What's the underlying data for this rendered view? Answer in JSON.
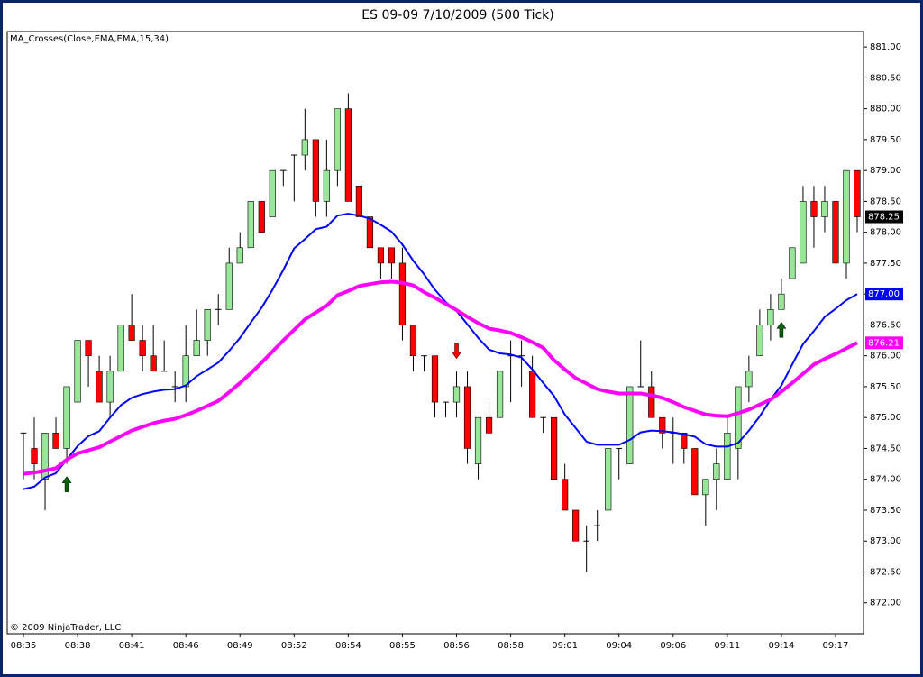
{
  "chart_data": {
    "type": "candlestick",
    "title": "ES 09-09  7/10/2009 (500 Tick)",
    "indicator_label": "MA_Crosses(Close,EMA,EMA,15,34)",
    "copyright": "© 2009 NinjaTrader, LLC",
    "categories": [
      "08:35",
      null,
      null,
      null,
      null,
      "08:38",
      null,
      null,
      null,
      null,
      "08:41",
      null,
      null,
      null,
      null,
      "08:46",
      null,
      null,
      null,
      null,
      "08:49",
      null,
      null,
      null,
      null,
      "08:52",
      null,
      null,
      null,
      null,
      "08:54",
      null,
      null,
      null,
      null,
      "08:55",
      null,
      null,
      null,
      null,
      "08:56",
      null,
      null,
      null,
      null,
      "08:58",
      null,
      null,
      null,
      null,
      "09:01",
      null,
      null,
      null,
      null,
      "09:04",
      null,
      null,
      null,
      null,
      "09:06",
      null,
      null,
      null,
      null,
      "09:11",
      null,
      null,
      null,
      null,
      "09:14",
      null,
      null,
      null,
      null,
      "09:17",
      null,
      null
    ],
    "open": [
      874.75,
      874.5,
      874.0,
      874.75,
      874.5,
      875.25,
      876.25,
      875.75,
      875.25,
      875.75,
      876.5,
      876.25,
      876.0,
      875.75,
      875.5,
      875.5,
      876.0,
      876.25,
      876.75,
      876.75,
      877.5,
      877.75,
      878.5,
      878.25,
      879.0,
      879.25,
      879.25,
      879.5,
      878.5,
      879.0,
      880.0,
      878.75,
      878.25,
      877.75,
      877.75,
      877.5,
      876.5,
      876.0,
      876.0,
      875.25,
      875.25,
      875.5,
      874.25,
      875.0,
      875.0,
      876.0,
      876.0,
      875.75,
      875.0,
      875.0,
      874.0,
      873.5,
      873.0,
      873.25,
      873.5,
      874.5,
      874.25,
      875.5,
      875.5,
      875.0,
      874.75,
      874.75,
      874.5,
      873.75,
      874.0,
      874.0,
      874.5,
      875.5,
      876.0,
      876.5,
      876.75,
      877.25,
      877.5,
      878.5,
      878.25,
      878.5,
      877.5,
      879.0
    ],
    "high": [
      874.75,
      875.0,
      874.75,
      875.0,
      875.5,
      876.25,
      876.25,
      876.0,
      876.0,
      876.5,
      877.0,
      876.5,
      876.5,
      876.25,
      875.75,
      876.5,
      876.75,
      876.75,
      877.0,
      877.75,
      878.0,
      878.5,
      878.5,
      879.0,
      879.0,
      879.25,
      880.0,
      879.5,
      879.5,
      880.0,
      880.25,
      878.75,
      878.25,
      877.75,
      877.75,
      877.75,
      876.5,
      876.0,
      876.0,
      875.25,
      875.75,
      875.75,
      875.0,
      875.25,
      875.75,
      876.25,
      876.25,
      876.0,
      875.0,
      875.0,
      874.25,
      873.5,
      873.25,
      873.5,
      874.5,
      874.5,
      875.5,
      876.25,
      875.75,
      875.0,
      875.0,
      874.75,
      874.5,
      874.0,
      874.5,
      875.0,
      875.5,
      876.0,
      876.75,
      877.0,
      877.25,
      877.75,
      878.75,
      878.75,
      878.75,
      878.5,
      879.0,
      879.0
    ],
    "low": [
      874.0,
      874.0,
      873.5,
      874.5,
      874.25,
      875.25,
      875.5,
      875.25,
      875.0,
      875.75,
      876.25,
      875.75,
      875.75,
      875.75,
      875.25,
      875.25,
      876.0,
      876.0,
      876.5,
      876.75,
      877.5,
      877.75,
      878.0,
      878.25,
      878.75,
      878.5,
      879.0,
      878.25,
      878.25,
      878.75,
      878.5,
      878.25,
      877.75,
      877.25,
      877.25,
      876.25,
      875.75,
      875.75,
      875.0,
      875.0,
      875.0,
      874.25,
      874.0,
      874.75,
      875.0,
      875.25,
      875.5,
      875.0,
      874.75,
      874.0,
      873.5,
      873.0,
      872.5,
      873.0,
      873.5,
      874.0,
      874.25,
      875.5,
      875.0,
      874.5,
      874.25,
      874.25,
      873.75,
      873.25,
      873.5,
      874.0,
      874.0,
      875.25,
      876.0,
      876.25,
      876.75,
      877.25,
      877.5,
      877.75,
      878.0,
      877.5,
      877.25,
      878.0
    ],
    "close": [
      874.75,
      874.25,
      874.75,
      874.5,
      875.5,
      876.25,
      876.0,
      875.25,
      875.75,
      876.5,
      876.25,
      876.0,
      875.75,
      875.75,
      875.5,
      876.0,
      876.25,
      876.75,
      876.75,
      877.5,
      877.75,
      878.5,
      878.0,
      879.0,
      879.0,
      879.25,
      879.5,
      878.5,
      879.0,
      880.0,
      878.5,
      878.25,
      877.75,
      877.5,
      877.5,
      876.5,
      876.0,
      876.0,
      875.25,
      875.25,
      875.5,
      874.5,
      875.0,
      874.75,
      875.75,
      876.0,
      876.0,
      875.0,
      875.0,
      874.0,
      873.5,
      873.0,
      873.0,
      873.25,
      874.5,
      874.5,
      875.5,
      875.5,
      875.0,
      874.75,
      874.75,
      874.5,
      873.75,
      874.0,
      874.25,
      874.75,
      875.5,
      875.75,
      876.5,
      876.75,
      877.0,
      877.75,
      878.5,
      878.25,
      878.5,
      877.5,
      879.0,
      878.25
    ],
    "last_label": "878.25",
    "up_color": "#98e698",
    "down_color": "#ff0000",
    "series": [
      {
        "color": "#0000ff",
        "last_label": "877.00",
        "values": [
          873.84,
          873.88,
          874.03,
          874.1,
          874.32,
          874.54,
          874.7,
          874.78,
          875.0,
          875.2,
          875.32,
          875.38,
          875.42,
          875.45,
          875.46,
          875.52,
          875.67,
          875.78,
          875.89,
          876.08,
          876.29,
          876.54,
          876.78,
          877.07,
          877.39,
          877.74,
          877.89,
          878.05,
          878.09,
          878.27,
          878.3,
          878.27,
          878.22,
          878.12,
          878.01,
          877.8,
          877.54,
          877.32,
          877.07,
          876.87,
          876.73,
          876.51,
          876.29,
          876.1,
          876.04,
          876.02,
          875.97,
          875.78,
          875.56,
          875.35,
          875.05,
          874.83,
          874.61,
          874.56,
          874.56,
          874.56,
          874.64,
          874.76,
          874.79,
          874.78,
          874.76,
          874.73,
          874.69,
          874.57,
          874.53,
          874.53,
          874.59,
          874.79,
          875.02,
          875.29,
          875.52,
          875.86,
          876.19,
          876.4,
          876.63,
          876.76,
          876.9,
          877.0
        ]
      },
      {
        "color": "#ff00ff",
        "last_label": "876.21",
        "values": [
          874.09,
          874.11,
          874.14,
          874.18,
          874.32,
          874.42,
          874.47,
          874.52,
          874.61,
          874.7,
          874.79,
          874.85,
          874.91,
          874.95,
          874.98,
          875.04,
          875.11,
          875.19,
          875.27,
          875.41,
          875.56,
          875.72,
          875.89,
          876.07,
          876.25,
          876.42,
          876.59,
          876.7,
          876.81,
          876.98,
          877.05,
          877.13,
          877.16,
          877.19,
          877.2,
          877.18,
          877.14,
          877.03,
          876.94,
          876.84,
          876.74,
          876.63,
          876.53,
          876.44,
          876.41,
          876.37,
          876.3,
          876.22,
          876.13,
          875.93,
          875.78,
          875.64,
          875.55,
          875.46,
          875.42,
          875.39,
          875.39,
          875.39,
          875.36,
          875.32,
          875.25,
          875.17,
          875.11,
          875.05,
          875.03,
          875.02,
          875.07,
          875.13,
          875.21,
          875.29,
          875.42,
          875.56,
          875.71,
          875.86,
          875.95,
          876.03,
          876.12,
          876.21
        ]
      }
    ],
    "signals": [
      {
        "bar": 4,
        "direction": "up",
        "color": "#006400"
      },
      {
        "bar": 40,
        "direction": "down",
        "color": "#ff0000"
      },
      {
        "bar": 70,
        "direction": "up",
        "color": "#006400"
      }
    ],
    "ylim": [
      871.5,
      881.25
    ],
    "yticks": [
      {
        "value": 872,
        "label": "872.00"
      },
      {
        "value": 872.5,
        "label": "872.50"
      },
      {
        "value": 873,
        "label": "873.00"
      },
      {
        "value": 873.5,
        "label": "873.50"
      },
      {
        "value": 874,
        "label": "874.00"
      },
      {
        "value": 874.5,
        "label": "874.50"
      },
      {
        "value": 875,
        "label": "875.00"
      },
      {
        "value": 875.5,
        "label": "875.50"
      },
      {
        "value": 876,
        "label": "876.00"
      },
      {
        "value": 876.5,
        "label": "876.50"
      },
      {
        "value": 877,
        "label": "877.00"
      },
      {
        "value": 877.5,
        "label": "877.50"
      },
      {
        "value": 878,
        "label": "878.00"
      },
      {
        "value": 878.5,
        "label": "878.50"
      },
      {
        "value": 879,
        "label": "879.00"
      },
      {
        "value": 879.5,
        "label": "879.50"
      },
      {
        "value": 880,
        "label": "880.00"
      },
      {
        "value": 880.5,
        "label": "880.50"
      },
      {
        "value": 881,
        "label": "881.00"
      }
    ]
  }
}
